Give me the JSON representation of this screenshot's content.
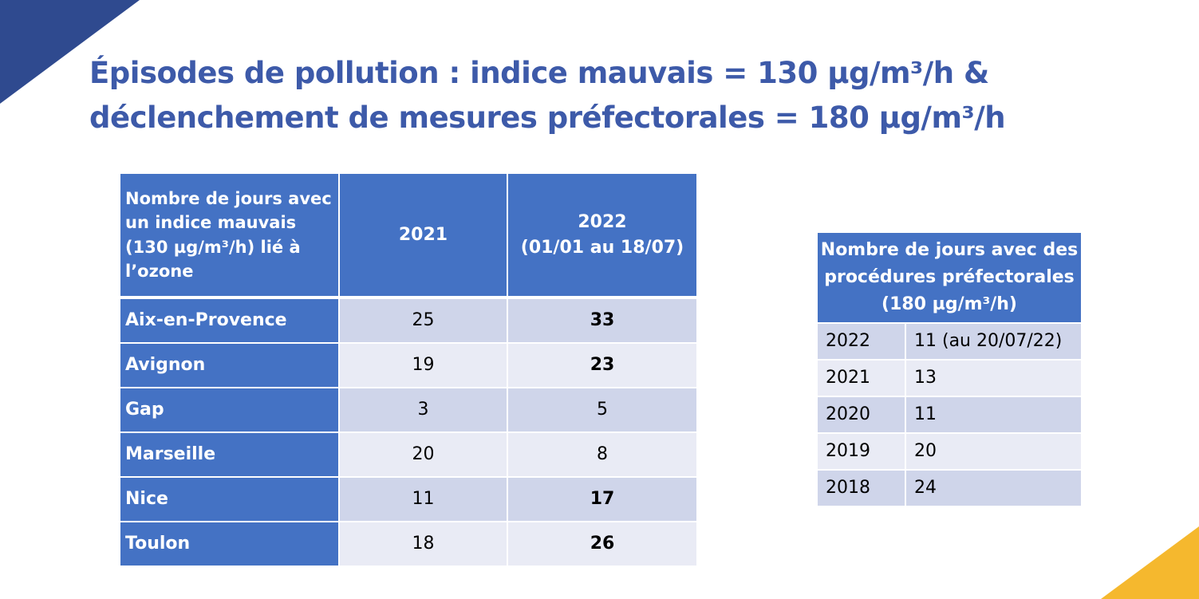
{
  "title": [
    "Épisodes de pollution : indice mauvais = 130 µg/m³/h &",
    "déclenchement de mesures préfectorales = 180 µg/m³/h"
  ],
  "table1": {
    "header": [
      [
        "Nombre de jours avec",
        "un indice mauvais",
        "(130 µg/m³/h) lié à",
        "l’ozone"
      ],
      [
        "2021"
      ],
      [
        "2022",
        "(01/01 au 18/07)"
      ]
    ],
    "rows": [
      [
        "Aix-en-Provence",
        "25",
        "33"
      ],
      [
        "Avignon",
        "19",
        "23"
      ],
      [
        "Gap",
        "3",
        "5"
      ],
      [
        "Marseille",
        "20",
        "8"
      ],
      [
        "Nice",
        "11",
        "17"
      ],
      [
        "Toulon",
        "18",
        "26"
      ]
    ],
    "bold_last_column": [
      true,
      true,
      false,
      false,
      true,
      true
    ]
  },
  "table2": {
    "header": [
      "Nombre de jours avec des",
      "procédures préfectorales",
      "(180 µg/m³/h)"
    ],
    "rows": [
      [
        "2022",
        "11 (au 20/07/22)"
      ],
      [
        "2021",
        "13"
      ],
      [
        "2020",
        "11"
      ],
      [
        "2019",
        "20"
      ],
      [
        "2018",
        "24"
      ]
    ]
  }
}
